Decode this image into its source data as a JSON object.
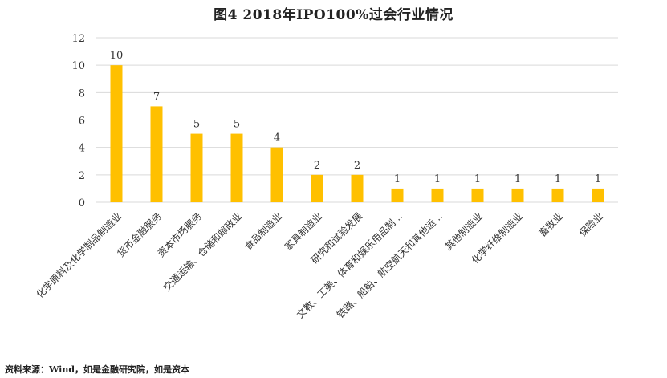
{
  "title": "图4    2018年IPO100%过会行业情况",
  "source": "资料来源：Wind，如是金融研究院，如是资本",
  "chart_data": {
    "type": "bar",
    "categories": [
      "化学原料及化学制品制造业",
      "货币金融服务",
      "资本市场服务",
      "交通运输、仓储和邮政业",
      "食品制造业",
      "家具制造业",
      "研究和试验发展",
      "文教、工美、体育和娱乐用品制…",
      "铁路、船舶、航空航天和其他运…",
      "其他制造业",
      "化学纤维制造业",
      "畜牧业",
      "保险业"
    ],
    "values": [
      10,
      7,
      5,
      5,
      4,
      2,
      2,
      1,
      1,
      1,
      1,
      1,
      1
    ],
    "ylim": [
      0,
      12
    ],
    "yticks": [
      0,
      2,
      4,
      6,
      8,
      10,
      12
    ],
    "bar_color": "#FFC000",
    "grid_color": "#D9D9D9",
    "grid": true,
    "legend": "none"
  }
}
